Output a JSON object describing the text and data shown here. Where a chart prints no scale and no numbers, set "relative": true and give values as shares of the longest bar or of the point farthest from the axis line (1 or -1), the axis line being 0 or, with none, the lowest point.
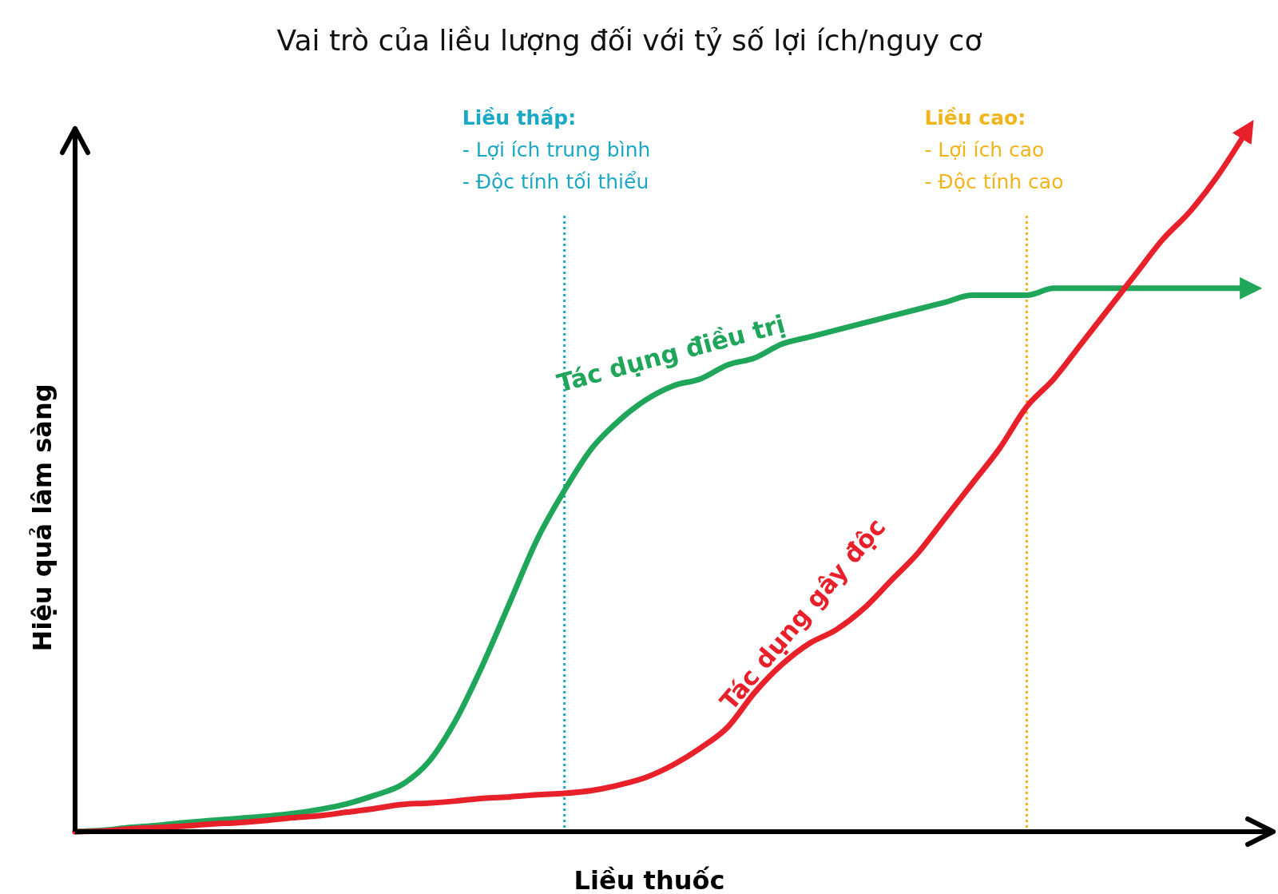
{
  "chart_data": {
    "type": "line",
    "title": "Vai trò của liều lượng đối với tỷ số lợi ích/nguy cơ",
    "xlabel": "Liều thuốc",
    "ylabel": "Hiệu quả lâm sàng",
    "relative": true,
    "marker": "none",
    "line_style": "solid",
    "annotations": [
      "Liều thấp:\n- Lợi ích trung bình\n- Độc tính tối thiểu",
      "Liều cao:\n- Lợi ích cao\n- Độc tính cao"
    ],
    "categories": [
      null,
      null,
      null,
      null,
      null,
      null,
      null,
      null,
      null,
      null,
      null,
      null,
      null,
      null,
      null,
      null,
      null,
      null,
      null,
      null,
      null,
      null,
      null,
      null,
      null,
      null,
      null,
      null,
      null,
      null,
      null,
      null,
      null,
      null,
      null,
      null,
      null,
      null,
      null,
      null,
      null,
      null,
      null,
      null
    ],
    "series": [
      {
        "name": "Tác dụng điều trị",
        "color": "#1fa65a",
        "values": [
          0,
          0.002,
          0.006,
          0.009,
          0.013,
          0.016,
          0.019,
          0.022,
          0.026,
          0.032,
          0.04,
          0.052,
          0.067,
          0.1,
          0.16,
          0.24,
          0.33,
          0.42,
          0.49,
          0.55,
          0.59,
          0.62,
          0.64,
          0.65,
          0.67,
          0.68,
          0.7,
          0.71,
          0.72,
          0.73,
          0.74,
          0.75,
          0.76,
          0.77,
          0.77,
          0.77,
          0.78,
          0.78,
          0.78,
          0.78,
          0.78,
          0.78,
          0.78,
          0.78
        ]
      },
      {
        "name": "Tác dụng gây độc",
        "color": "#e8202a",
        "values": [
          0,
          0.001,
          0.004,
          0.006,
          0.008,
          0.011,
          0.013,
          0.016,
          0.02,
          0.023,
          0.028,
          0.033,
          0.039,
          0.041,
          0.044,
          0.048,
          0.05,
          0.053,
          0.055,
          0.059,
          0.067,
          0.078,
          0.096,
          0.12,
          0.15,
          0.2,
          0.24,
          0.27,
          0.29,
          0.32,
          0.36,
          0.4,
          0.45,
          0.5,
          0.55,
          0.61,
          0.65,
          0.7,
          0.75,
          0.8,
          0.85,
          0.89,
          0.94,
          1
        ]
      }
    ]
  }
}
